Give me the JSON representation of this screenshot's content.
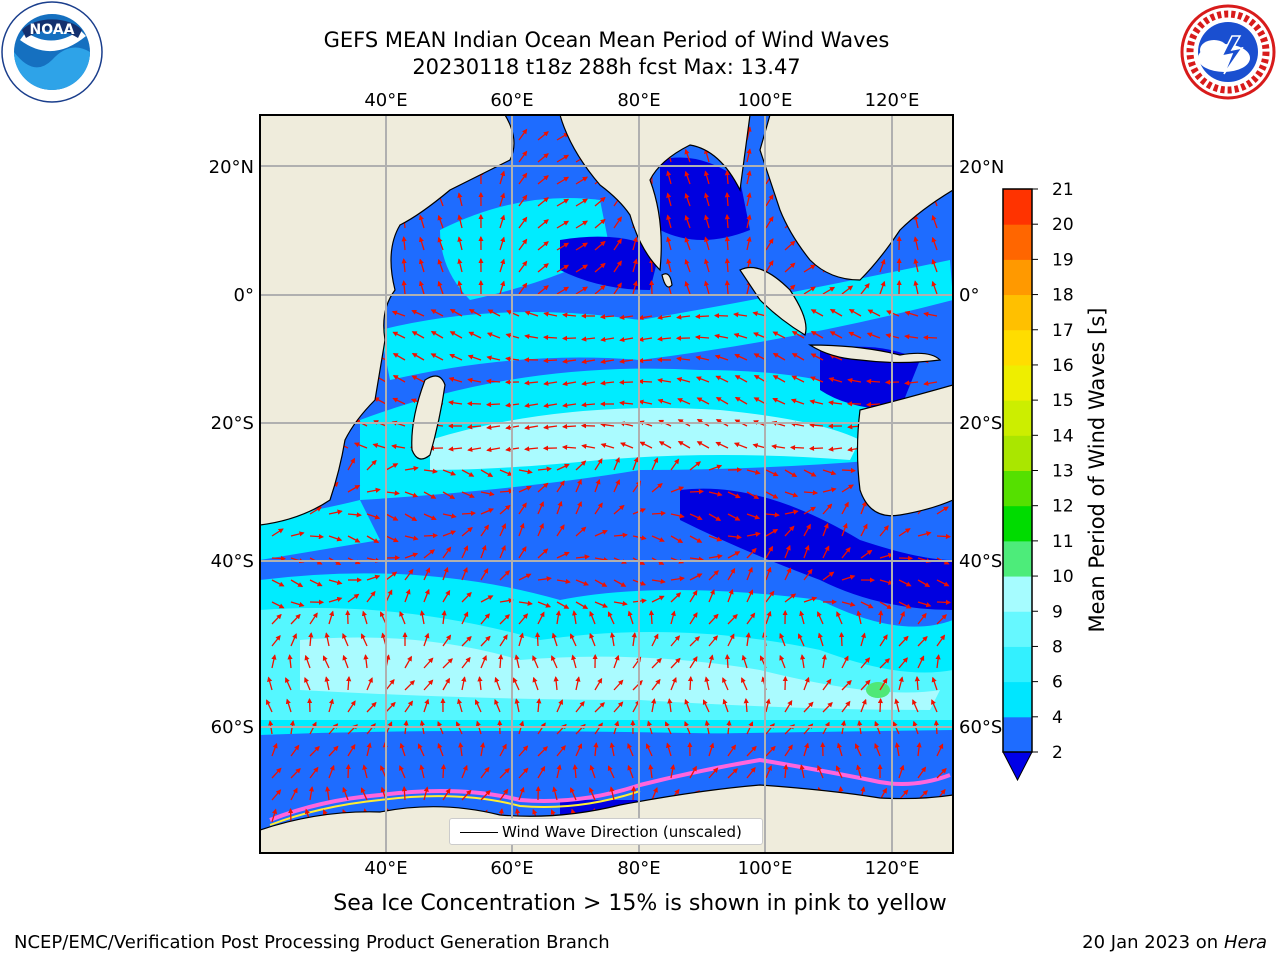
{
  "title": {
    "line1": "GEFS MEAN Indian Ocean Mean Period of Wind Waves",
    "line2": "20230118 t18z 288h fcst   Max: 13.47"
  },
  "logos": {
    "left": {
      "name": "noaa-logo",
      "text": "NOAA"
    },
    "right": {
      "name": "nws-logo",
      "text": "NATIONAL WEATHER SERVICE"
    }
  },
  "map": {
    "lon_ticks_top": [
      "40°E",
      "60°E",
      "80°E",
      "100°E",
      "120°E"
    ],
    "lon_ticks_bottom": [
      "40°E",
      "60°E",
      "80°E",
      "100°E",
      "120°E"
    ],
    "lat_ticks_left": [
      "20°N",
      "0°",
      "20°S",
      "40°S",
      "60°S"
    ],
    "lat_ticks_right": [
      "20°N",
      "0°",
      "20°S",
      "40°S",
      "60°S"
    ],
    "colors": {
      "land": "#efecdc",
      "deep_blue": "#0000e0",
      "mid_blue": "#1e6cff",
      "cyan": "#00ecff",
      "light_cyan": "#55f7ff",
      "pale_cyan": "#aafbff",
      "green": "#4fe878",
      "arrow": "#ee1100",
      "ice_pink": "#ff66dd",
      "ice_yellow": "#ffee33"
    },
    "legend": {
      "label": "Wind Wave Direction (unscaled)"
    }
  },
  "colorbar": {
    "title": "Mean Period of Wind Waves [s]",
    "ticks": [
      "2",
      "4",
      "6",
      "8",
      "9",
      "10",
      "11",
      "12",
      "13",
      "14",
      "15",
      "16",
      "17",
      "18",
      "19",
      "20",
      "21"
    ],
    "colors": [
      "#1e6cff",
      "#00e6ff",
      "#33f0ff",
      "#66f8ff",
      "#a6fcff",
      "#4dec7a",
      "#00dc00",
      "#55e000",
      "#aae600",
      "#ccee00",
      "#eeee00",
      "#ffdd00",
      "#ffc000",
      "#ff9900",
      "#ff6600",
      "#ff3300",
      "#ff0000"
    ],
    "under_color": "#0000e8"
  },
  "caption": "Sea Ice Concentration > 15% is shown in pink to yellow",
  "footer": {
    "left": "NCEP/EMC/Verification Post Processing Product Generation Branch",
    "right_date": "20 Jan 2023 on ",
    "right_machine": "Hera"
  }
}
